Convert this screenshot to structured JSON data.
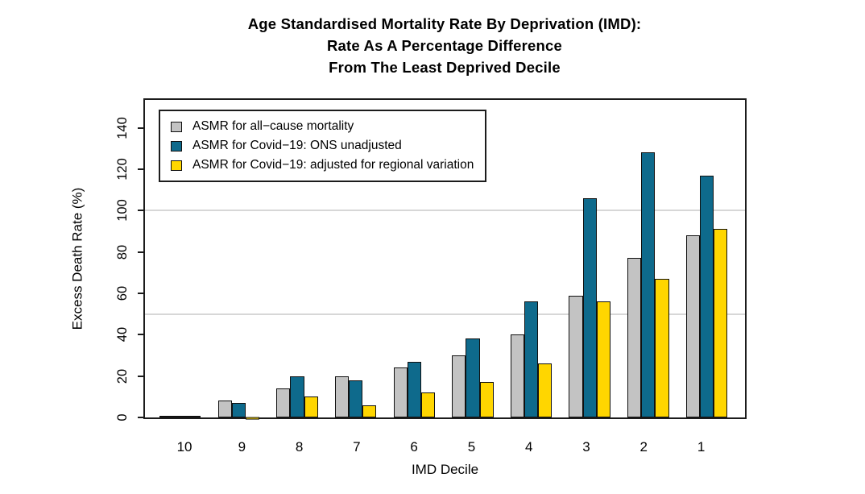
{
  "chart_data": {
    "type": "bar",
    "title_lines": [
      "Age Standardised Mortality Rate By Deprivation (IMD):",
      "Rate As A Percentage Difference",
      "From The Least Deprived Decile"
    ],
    "xlabel": "IMD Decile",
    "ylabel": "Excess Death Rate (%)",
    "categories": [
      "10",
      "9",
      "8",
      "7",
      "6",
      "5",
      "4",
      "3",
      "2",
      "1"
    ],
    "series": [
      {
        "name": "ASMR for all−cause mortality",
        "color": "#c3c3c3",
        "values": [
          0,
          8,
          14,
          20,
          24,
          30,
          40,
          59,
          77,
          88
        ]
      },
      {
        "name": "ASMR for Covid−19: ONS unadjusted",
        "color": "#0e6a8c",
        "values": [
          0,
          7,
          20,
          18,
          27,
          38,
          56,
          106,
          128,
          117
        ]
      },
      {
        "name": "ASMR for Covid−19: adjusted for regional variation",
        "color": "#ffd600",
        "values": [
          0,
          -1,
          10,
          6,
          12,
          17,
          26,
          56,
          67,
          91
        ]
      }
    ],
    "yticks": [
      0,
      20,
      40,
      60,
      80,
      100,
      120,
      140
    ],
    "ylim": [
      0,
      155
    ],
    "gridlines": [
      50,
      100
    ],
    "legend_position": "top-left",
    "grid": "horizontal lines at 50 and 100 only",
    "bar_border_color": "#101010"
  }
}
